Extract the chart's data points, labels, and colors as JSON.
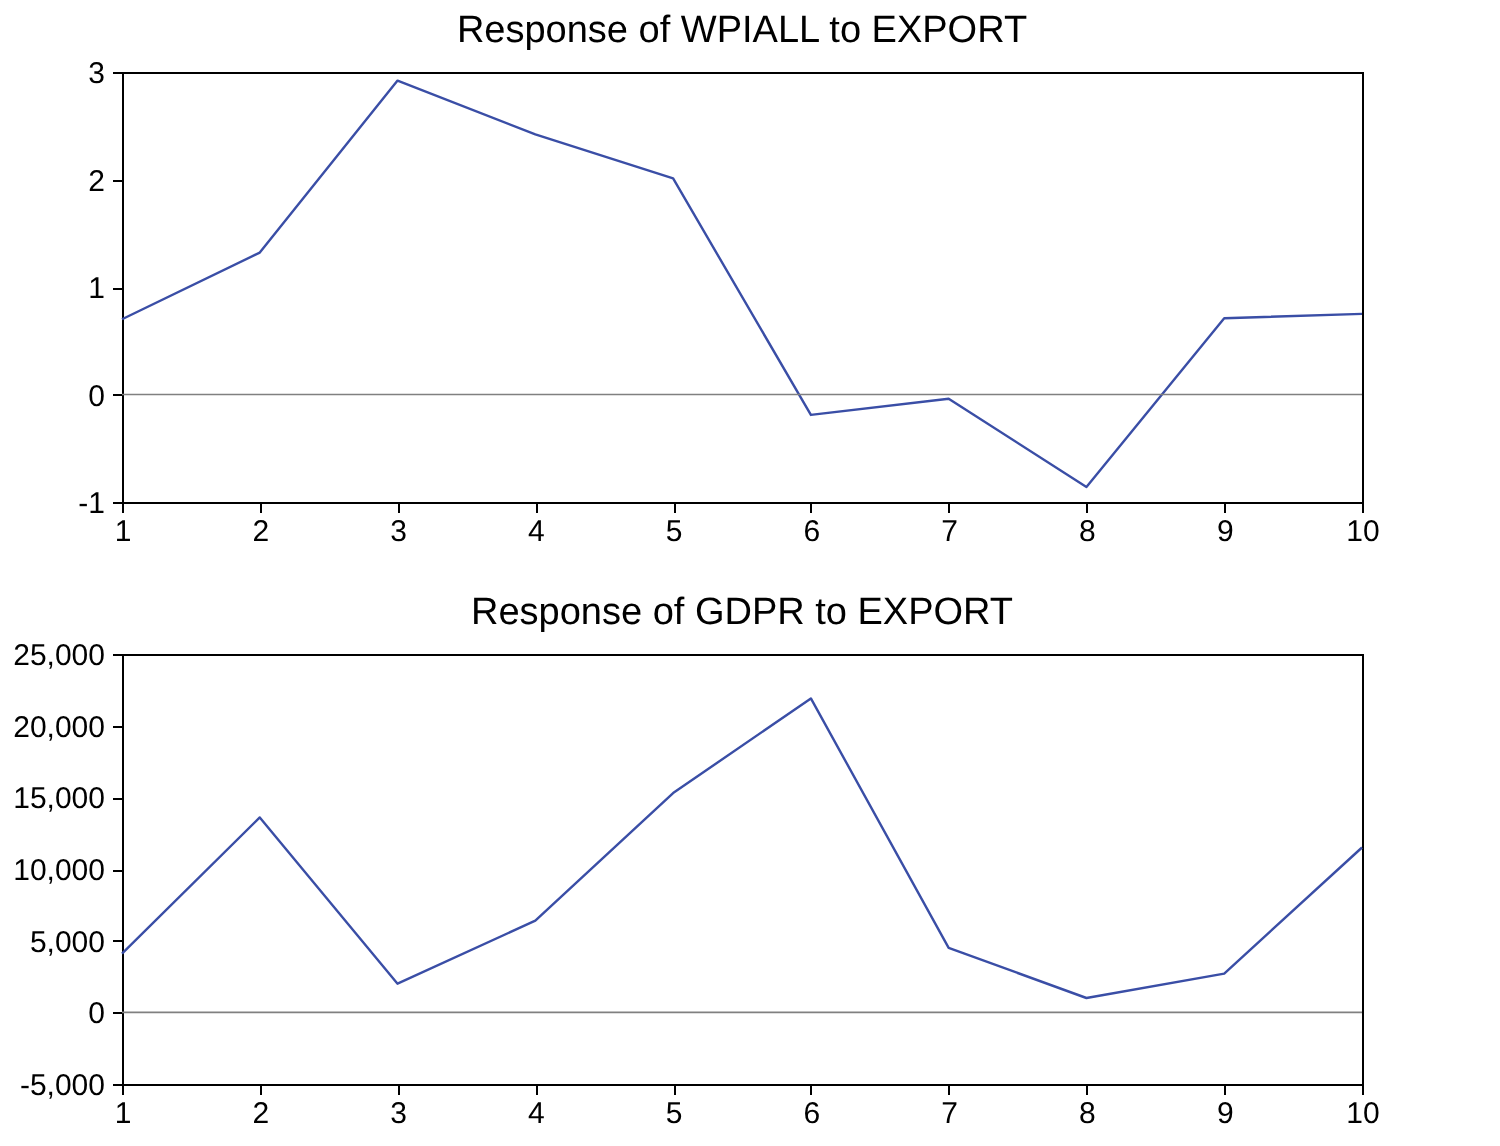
{
  "chart_data": [
    {
      "type": "line",
      "title": "Response of WPIALL to EXPORT",
      "x": [
        1,
        2,
        3,
        4,
        5,
        6,
        7,
        8,
        9,
        10
      ],
      "series": [
        {
          "color": "#3a4ea6",
          "values": [
            0.7,
            1.32,
            2.92,
            2.42,
            2.01,
            -0.19,
            -0.04,
            -0.86,
            0.71,
            0.75
          ]
        }
      ],
      "xlim": [
        1,
        10
      ],
      "xticks": [
        1,
        2,
        3,
        4,
        5,
        6,
        7,
        8,
        9,
        10
      ],
      "ylim": [
        -1,
        3
      ],
      "yticks": [
        -1,
        0,
        1,
        2,
        3
      ],
      "ref_lines": [
        {
          "axis": "y",
          "value": 0,
          "color": "#808080"
        }
      ],
      "grid": false,
      "legend": false
    },
    {
      "type": "line",
      "title": "Response of GDPR to EXPORT",
      "x": [
        1,
        2,
        3,
        4,
        5,
        6,
        7,
        8,
        9,
        10
      ],
      "series": [
        {
          "color": "#3a4ea6",
          "values": [
            4100,
            13600,
            2000,
            6400,
            15300,
            21900,
            4500,
            1000,
            2700,
            11500
          ]
        }
      ],
      "xlim": [
        1,
        10
      ],
      "xticks": [
        1,
        2,
        3,
        4,
        5,
        6,
        7,
        8,
        9,
        10
      ],
      "ylim": [
        -5000,
        25000
      ],
      "yticks": [
        {
          "value": -5000,
          "label": "-5,000"
        },
        0,
        {
          "value": 5000,
          "label": "5,000"
        },
        {
          "value": 10000,
          "label": "10,000"
        },
        {
          "value": 15000,
          "label": "15,000"
        },
        {
          "value": 20000,
          "label": "20,000"
        },
        {
          "value": 25000,
          "label": "25,000"
        }
      ],
      "ref_lines": [
        {
          "axis": "y",
          "value": 0,
          "color": "#808080"
        }
      ],
      "grid": false,
      "legend": false
    }
  ]
}
